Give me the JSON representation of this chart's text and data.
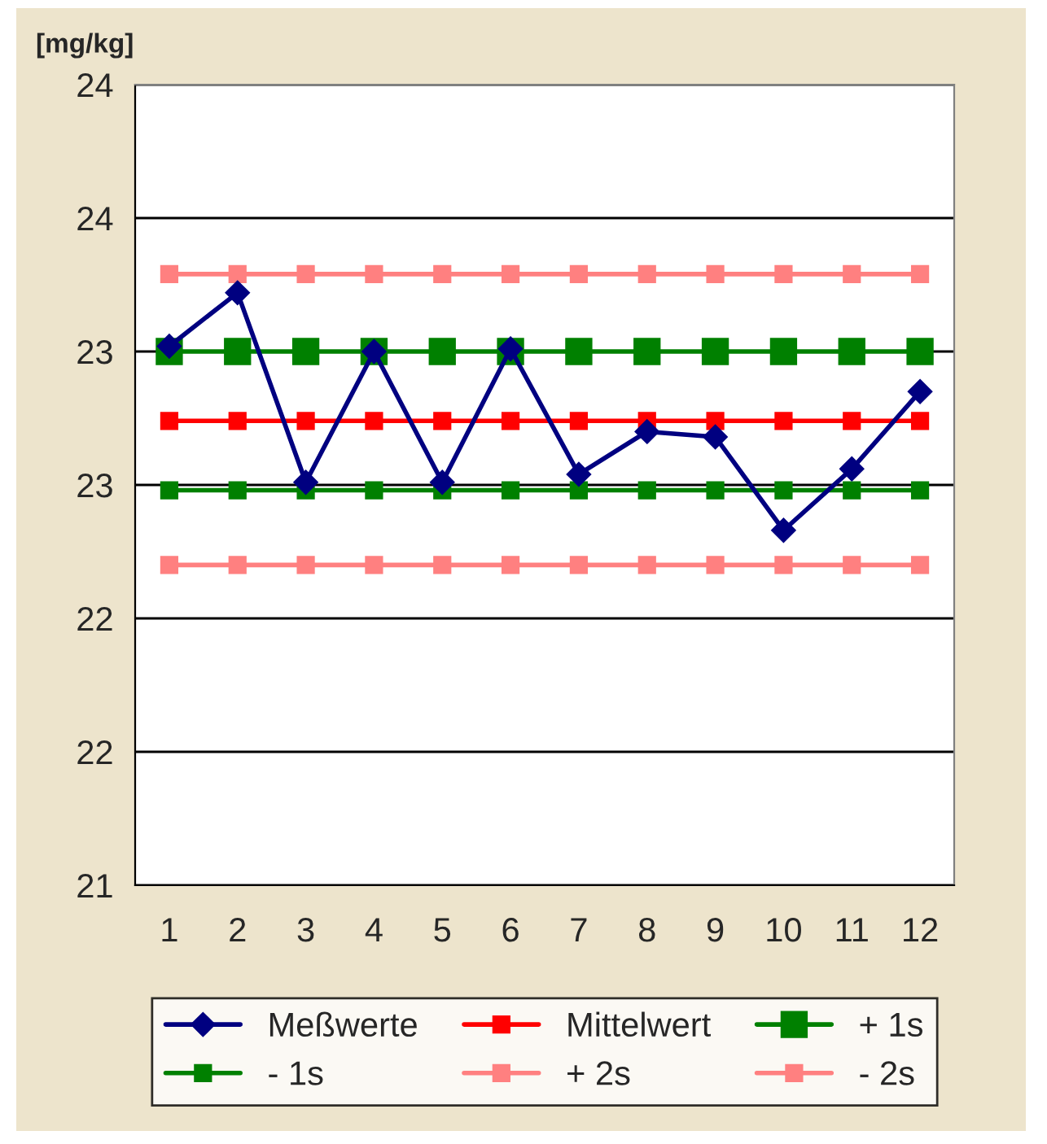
{
  "chart_data": {
    "type": "line",
    "ylabel": "[mg/kg]",
    "categories": [
      "1",
      "2",
      "3",
      "4",
      "5",
      "6",
      "7",
      "8",
      "9",
      "10",
      "11",
      "12"
    ],
    "ylim": [
      21,
      24
    ],
    "yticks": [
      21,
      {
        "value": 21.5,
        "label": "22"
      },
      22,
      {
        "value": 22.5,
        "label": "23"
      },
      23,
      {
        "value": 23.5,
        "label": "24"
      },
      24
    ],
    "grid": "y",
    "legend": "bottom",
    "series": [
      {
        "name": "Meßwerte",
        "color": "#000080",
        "marker": "diamond",
        "values": [
          23.02,
          23.22,
          22.51,
          23.0,
          22.51,
          23.01,
          22.54,
          22.7,
          22.68,
          22.33,
          22.56,
          22.85
        ]
      },
      {
        "name": "Mittelwert",
        "color": "#ff0000",
        "marker": "square",
        "values": [
          22.74,
          22.74,
          22.74,
          22.74,
          22.74,
          22.74,
          22.74,
          22.74,
          22.74,
          22.74,
          22.74,
          22.74
        ]
      },
      {
        "name": "+ 1s",
        "color": "#008000",
        "marker": "square",
        "values": [
          23.0,
          23.0,
          23.0,
          23.0,
          23.0,
          23.0,
          23.0,
          23.0,
          23.0,
          23.0,
          23.0,
          23.0
        ]
      },
      {
        "name": "- 1s",
        "color": "#008000",
        "marker": "square",
        "values": [
          22.48,
          22.48,
          22.48,
          22.48,
          22.48,
          22.48,
          22.48,
          22.48,
          22.48,
          22.48,
          22.48,
          22.48
        ]
      },
      {
        "name": "+ 2s",
        "color": "#ff8080",
        "marker": "square",
        "values": [
          23.29,
          23.29,
          23.29,
          23.29,
          23.29,
          23.29,
          23.29,
          23.29,
          23.29,
          23.29,
          23.29,
          23.29
        ]
      },
      {
        "name": "- 2s",
        "color": "#ff8080",
        "marker": "square",
        "values": [
          22.2,
          22.2,
          22.2,
          22.2,
          22.2,
          22.2,
          22.2,
          22.2,
          22.2,
          22.2,
          22.2,
          22.2
        ]
      }
    ]
  }
}
